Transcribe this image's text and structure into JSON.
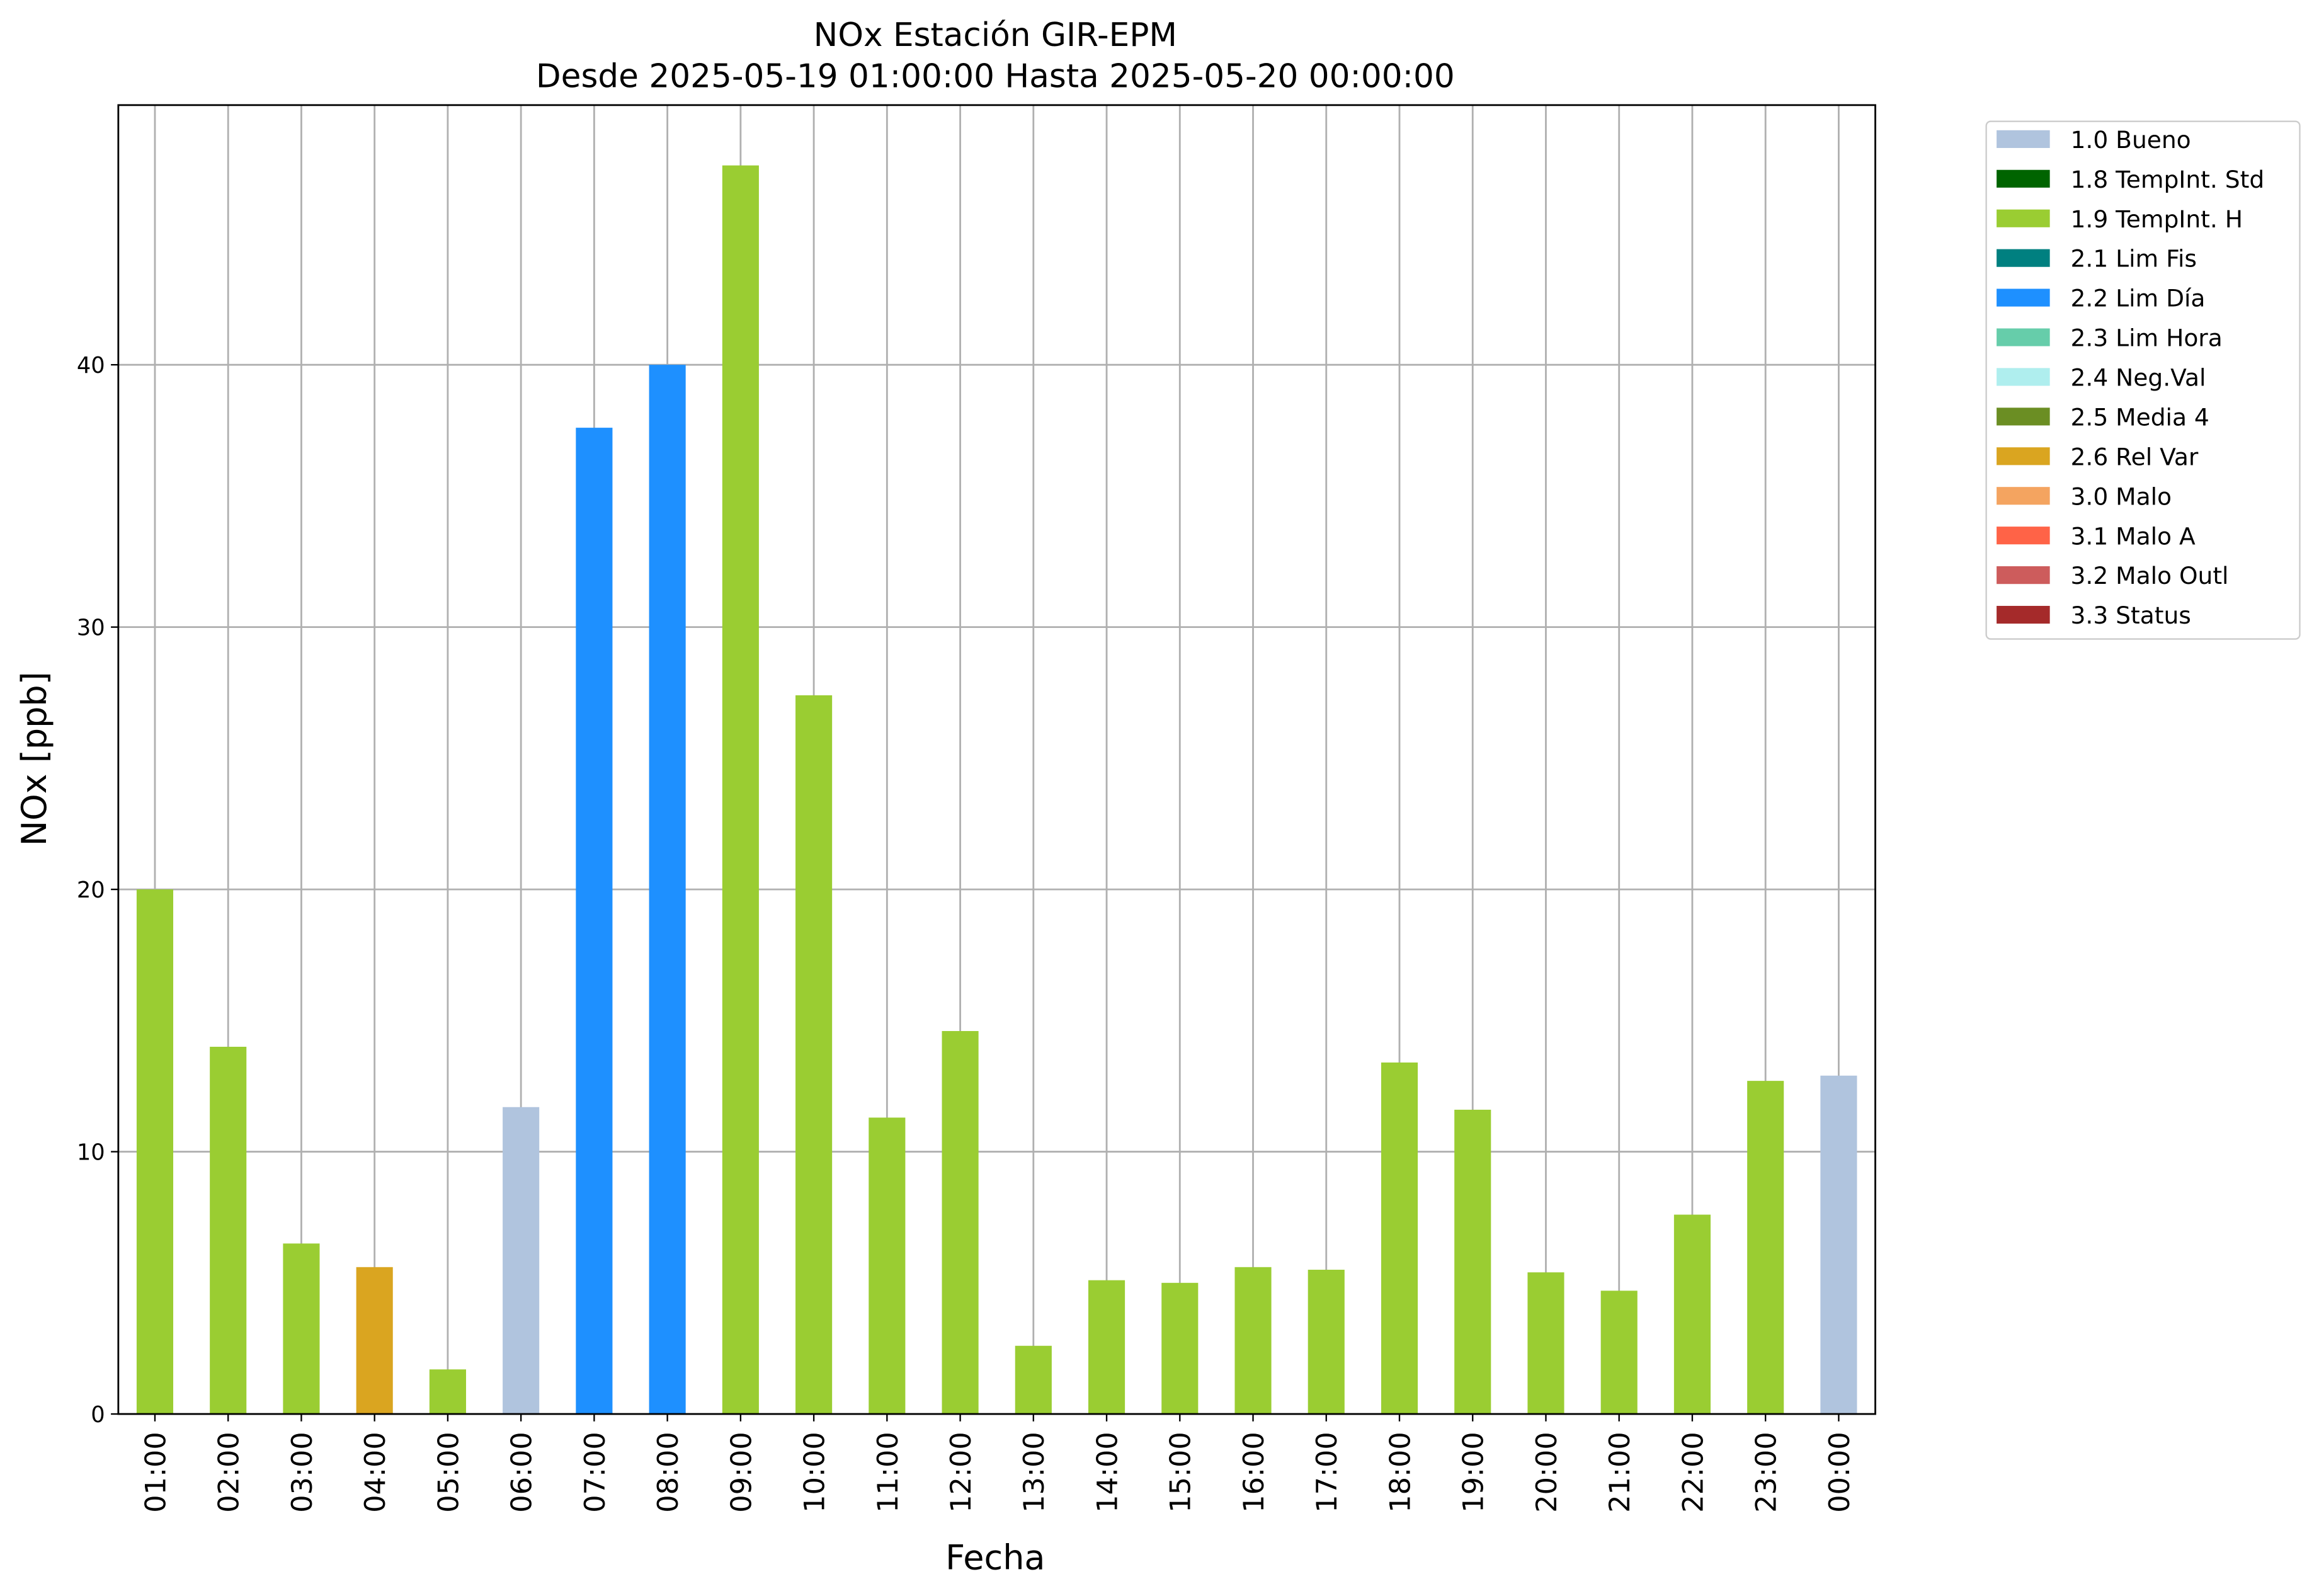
{
  "chart_data": {
    "type": "bar",
    "stacked": true,
    "title": "NOx Estación GIR-EPM",
    "subtitle": "Desde 2025-05-19 01:00:00 Hasta 2025-05-20 00:00:00",
    "xlabel": "Fecha",
    "ylabel": "NOx [ppb]",
    "categories": [
      "01:00",
      "02:00",
      "03:00",
      "04:00",
      "05:00",
      "06:00",
      "07:00",
      "08:00",
      "09:00",
      "10:00",
      "11:00",
      "12:00",
      "13:00",
      "14:00",
      "15:00",
      "16:00",
      "17:00",
      "18:00",
      "19:00",
      "20:00",
      "21:00",
      "22:00",
      "23:00",
      "00:00"
    ],
    "ylim": [
      0,
      49.9
    ],
    "yticks": [
      0,
      10,
      20,
      30,
      40
    ],
    "grid": true,
    "legend": "outside-upper-right",
    "series": [
      {
        "name": "1.0 Bueno",
        "color": "#b0c4de",
        "values": [
          null,
          null,
          null,
          null,
          null,
          11.7,
          null,
          null,
          null,
          null,
          null,
          null,
          null,
          null,
          null,
          null,
          null,
          null,
          null,
          null,
          null,
          null,
          null,
          12.9
        ]
      },
      {
        "name": "1.8 TempInt. Std",
        "color": "#006400",
        "values": [
          null,
          null,
          null,
          null,
          null,
          null,
          null,
          null,
          null,
          null,
          null,
          null,
          null,
          null,
          null,
          null,
          null,
          null,
          null,
          null,
          null,
          null,
          null,
          null
        ]
      },
      {
        "name": "1.9 TempInt. H",
        "color": "#9acd32",
        "values": [
          20.0,
          14.0,
          6.5,
          null,
          1.7,
          null,
          null,
          null,
          47.6,
          27.4,
          11.3,
          14.6,
          2.6,
          5.1,
          5.0,
          5.6,
          5.5,
          13.4,
          11.6,
          5.4,
          4.7,
          7.6,
          12.7,
          null
        ]
      },
      {
        "name": "2.1 Lim Fis",
        "color": "#008080",
        "values": [
          null,
          null,
          null,
          null,
          null,
          null,
          null,
          null,
          null,
          null,
          null,
          null,
          null,
          null,
          null,
          null,
          null,
          null,
          null,
          null,
          null,
          null,
          null,
          null
        ]
      },
      {
        "name": "2.2 Lim Día",
        "color": "#1e90ff",
        "values": [
          null,
          null,
          null,
          null,
          null,
          null,
          37.6,
          40.0,
          null,
          null,
          null,
          null,
          null,
          null,
          null,
          null,
          null,
          null,
          null,
          null,
          null,
          null,
          null,
          null
        ]
      },
      {
        "name": "2.3 Lim Hora",
        "color": "#66cdaa",
        "values": [
          null,
          null,
          null,
          null,
          null,
          null,
          null,
          null,
          null,
          null,
          null,
          null,
          null,
          null,
          null,
          null,
          null,
          null,
          null,
          null,
          null,
          null,
          null,
          null
        ]
      },
      {
        "name": "2.4 Neg.Val",
        "color": "#afeeee",
        "values": [
          null,
          null,
          null,
          null,
          null,
          null,
          null,
          null,
          null,
          null,
          null,
          null,
          null,
          null,
          null,
          null,
          null,
          null,
          null,
          null,
          null,
          null,
          null,
          null
        ]
      },
      {
        "name": "2.5 Media 4",
        "color": "#6b8e23",
        "values": [
          null,
          null,
          null,
          null,
          null,
          null,
          null,
          null,
          null,
          null,
          null,
          null,
          null,
          null,
          null,
          null,
          null,
          null,
          null,
          null,
          null,
          null,
          null,
          null
        ]
      },
      {
        "name": "2.6 Rel Var",
        "color": "#daa520",
        "values": [
          null,
          null,
          null,
          5.6,
          null,
          null,
          null,
          null,
          null,
          null,
          null,
          null,
          null,
          null,
          null,
          null,
          null,
          null,
          null,
          null,
          null,
          null,
          null,
          null
        ]
      },
      {
        "name": "3.0 Malo",
        "color": "#f4a460",
        "values": [
          null,
          null,
          null,
          null,
          null,
          null,
          null,
          null,
          null,
          null,
          null,
          null,
          null,
          null,
          null,
          null,
          null,
          null,
          null,
          null,
          null,
          null,
          null,
          null
        ]
      },
      {
        "name": "3.1 Malo A",
        "color": "#ff6347",
        "values": [
          null,
          null,
          null,
          null,
          null,
          null,
          null,
          null,
          null,
          null,
          null,
          null,
          null,
          null,
          null,
          null,
          null,
          null,
          null,
          null,
          null,
          null,
          null,
          null
        ]
      },
      {
        "name": "3.2 Malo Outl",
        "color": "#cd5c5c",
        "values": [
          null,
          null,
          null,
          null,
          null,
          null,
          null,
          null,
          null,
          null,
          null,
          null,
          null,
          null,
          null,
          null,
          null,
          null,
          null,
          null,
          null,
          null,
          null,
          null
        ]
      },
      {
        "name": "3.3 Status",
        "color": "#a52a2a",
        "values": [
          null,
          null,
          null,
          null,
          null,
          null,
          null,
          null,
          null,
          null,
          null,
          null,
          null,
          null,
          null,
          null,
          null,
          null,
          null,
          null,
          null,
          null,
          null,
          null
        ]
      }
    ]
  }
}
